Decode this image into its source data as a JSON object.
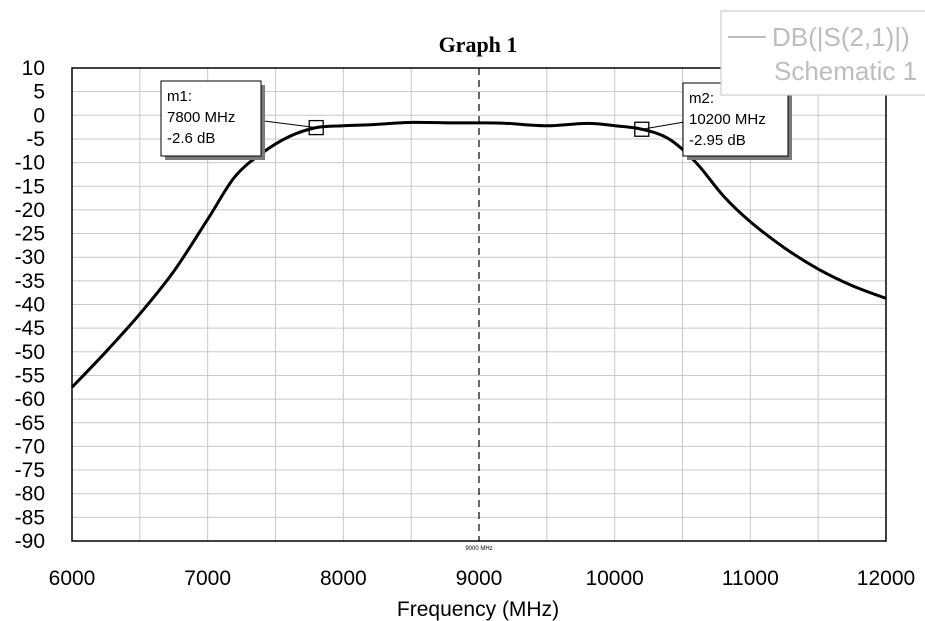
{
  "chart_data": {
    "type": "line",
    "title": "Graph 1",
    "xlabel": "Frequency (MHz)",
    "ylabel": "",
    "xlim": [
      6000,
      12000
    ],
    "ylim": [
      -90,
      10
    ],
    "xticks": [
      6000,
      7000,
      8000,
      9000,
      10000,
      11000,
      12000
    ],
    "xtick_labels": [
      "6000",
      "7000",
      "8000",
      "9000",
      "10000",
      "11000",
      "12000"
    ],
    "xminor_step": 500,
    "yticks": [
      10,
      5,
      0,
      -5,
      -10,
      -15,
      -20,
      -25,
      -30,
      -35,
      -40,
      -45,
      -50,
      -55,
      -60,
      -65,
      -70,
      -75,
      -80,
      -85,
      -90
    ],
    "ytick_labels": [
      "10",
      "5",
      "0",
      "-5",
      "-10",
      "-15",
      "-20",
      "-25",
      "-30",
      "-35",
      "-40",
      "-45",
      "-50",
      "-55",
      "-60",
      "-65",
      "-70",
      "-75",
      "-80",
      "-85",
      "-90"
    ],
    "grid": true,
    "legend": {
      "placement": "top-right",
      "entries": [
        {
          "label": "DB(|S(2,1)|)",
          "sublabel": "Schematic 1"
        }
      ]
    },
    "vline": {
      "x": 9000,
      "label": "9000 MHz"
    },
    "series": [
      {
        "name": "DB(|S(2,1)|)",
        "color": "#000000",
        "x": [
          6000,
          6250,
          6500,
          6750,
          7000,
          7200,
          7400,
          7600,
          7800,
          8000,
          8200,
          8500,
          8800,
          9000,
          9200,
          9500,
          9800,
          10000,
          10200,
          10400,
          10600,
          10800,
          11000,
          11250,
          11500,
          11750,
          12000
        ],
        "y": [
          -57.5,
          -50,
          -42,
          -33,
          -22,
          -13,
          -8,
          -4.5,
          -2.6,
          -2.2,
          -2.0,
          -1.5,
          -1.6,
          -1.6,
          -1.7,
          -2.2,
          -1.7,
          -2.2,
          -2.95,
          -5,
          -10,
          -17,
          -22.5,
          -28,
          -32.5,
          -36,
          -38.7
        ]
      }
    ],
    "markers": [
      {
        "name": "m1",
        "line1": "m1:",
        "line2": "7800 MHz",
        "line3": "-2.6 dB",
        "x": 7800,
        "y": -2.6
      },
      {
        "name": "m2",
        "line1": "m2:",
        "line2": "10200 MHz",
        "line3": "-2.95 dB",
        "x": 10200,
        "y": -2.95
      }
    ]
  }
}
